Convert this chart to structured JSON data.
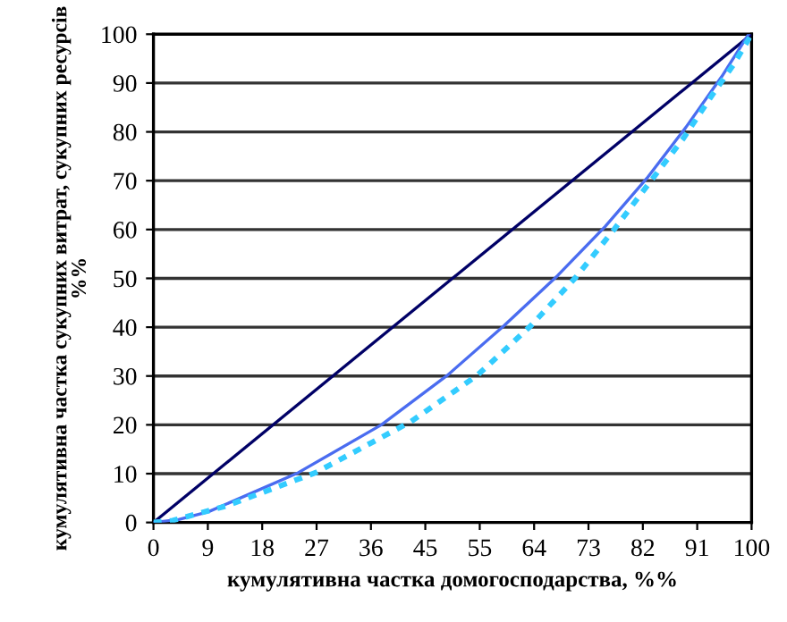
{
  "chart_data": {
    "type": "line",
    "xlabel": "кумулятивна частка домогосподарства, %%",
    "ylabel": "кумулятивна частка сукупних витрат, сукупних ресурсів\n%%",
    "xlim": [
      0,
      100
    ],
    "ylim": [
      0,
      100
    ],
    "xticks": [
      0,
      {
        "value": 9.09,
        "label": "9"
      },
      {
        "value": 18.18,
        "label": "18"
      },
      {
        "value": 27.27,
        "label": "27"
      },
      {
        "value": 36.36,
        "label": "36"
      },
      {
        "value": 45.45,
        "label": "45"
      },
      {
        "value": 54.55,
        "label": "55"
      },
      {
        "value": 63.64,
        "label": "64"
      },
      {
        "value": 72.73,
        "label": "73"
      },
      {
        "value": 81.82,
        "label": "82"
      },
      {
        "value": 90.91,
        "label": "91"
      },
      100
    ],
    "yticks": [
      0,
      10,
      20,
      30,
      40,
      50,
      60,
      70,
      80,
      90,
      100
    ],
    "grid": "y",
    "legend": false,
    "marker": "none",
    "series": [
      {
        "color": "#000066",
        "line_style": "solid",
        "x": [
          0,
          100
        ],
        "values": [
          0,
          100
        ]
      },
      {
        "color": "#4a6cf0",
        "line_style": "solid",
        "x": [
          0,
          4.2,
          9.2,
          16.2,
          24.2,
          38.1,
          49.1,
          58.6,
          67.6,
          75.5,
          82.5,
          89,
          95,
          99.5
        ],
        "values": [
          0,
          0.6,
          2.2,
          5.9,
          10.2,
          20,
          30.1,
          40.3,
          50.6,
          60.6,
          70.5,
          80.9,
          91.3,
          100
        ]
      },
      {
        "color": "#33ccff",
        "line_style": "dotted",
        "x": [
          0,
          3.2,
          12.2,
          27.1,
          43.1,
          54.1,
          63.1,
          70.6,
          77,
          83.5,
          88.5,
          93.5,
          97,
          100
        ],
        "values": [
          0,
          0.4,
          3.4,
          10.2,
          20.7,
          30.1,
          40.3,
          50.2,
          60,
          70.5,
          78.5,
          87.7,
          93.8,
          100
        ]
      }
    ]
  }
}
